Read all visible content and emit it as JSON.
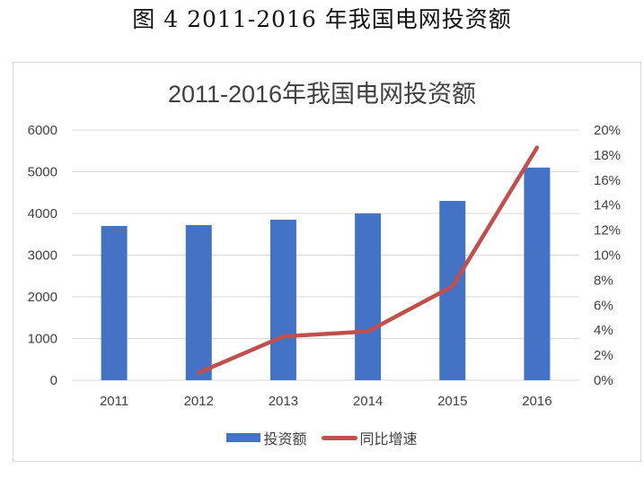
{
  "figure": {
    "caption": "图 4 2011-2016 年我国电网投资额"
  },
  "colors": {
    "bar": "#4472c4",
    "line": "#c0504d",
    "grid": "#d9d9d9",
    "text": "#404040"
  },
  "legend": {
    "bar_label": "投资额",
    "line_label": "同比增速"
  },
  "chart_data": {
    "type": "bar",
    "combo": "bar+line (dual axis)",
    "title": "2011-2016年我国电网投资额",
    "xlabel": "",
    "ylabel": "",
    "y2label": "",
    "categories": [
      "2011",
      "2012",
      "2013",
      "2014",
      "2015",
      "2016"
    ],
    "series": [
      {
        "name": "投资额",
        "type": "bar",
        "axis": "left",
        "values": [
          3700,
          3720,
          3850,
          4000,
          4300,
          5100
        ]
      },
      {
        "name": "同比增速",
        "type": "line",
        "axis": "right",
        "unit": "%",
        "values": [
          null,
          0.6,
          3.5,
          3.9,
          7.5,
          18.6
        ]
      }
    ],
    "ylim": [
      0,
      6000
    ],
    "y_ticks": [
      "0",
      "1000",
      "2000",
      "3000",
      "4000",
      "5000",
      "6000"
    ],
    "y2lim": [
      0,
      20
    ],
    "y2_ticks": [
      "0%",
      "2%",
      "4%",
      "6%",
      "8%",
      "10%",
      "12%",
      "14%",
      "16%",
      "18%",
      "20%"
    ],
    "grid": true,
    "legend_position": "bottom"
  }
}
